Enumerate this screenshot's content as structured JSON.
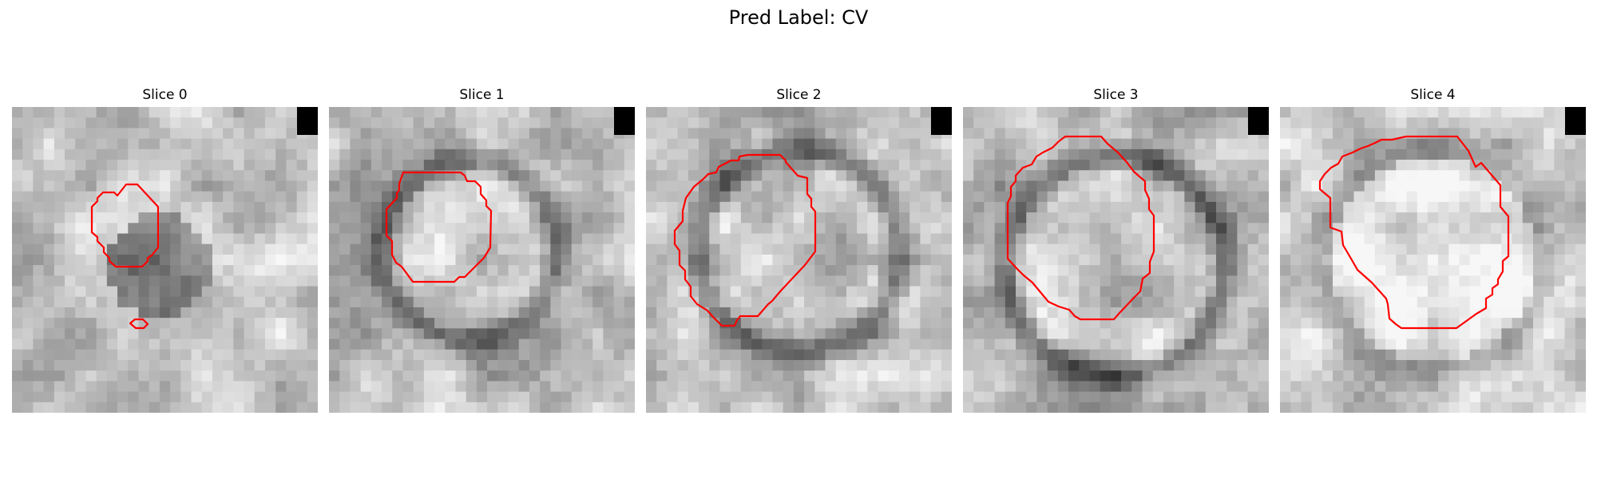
{
  "figure": {
    "title": "Pred Label: CV"
  },
  "panels": [
    {
      "title": "Slice 0",
      "seed": 11,
      "contour_color": "#ff0000"
    },
    {
      "title": "Slice 1",
      "seed": 23,
      "contour_color": "#ff0000"
    },
    {
      "title": "Slice 2",
      "seed": 37,
      "contour_color": "#ff0000"
    },
    {
      "title": "Slice 3",
      "seed": 41,
      "contour_color": "#ff0000"
    },
    {
      "title": "Slice 4",
      "seed": 59,
      "contour_color": "#ff0000"
    }
  ],
  "colors": {
    "contour": "#ff0000",
    "marker": "#000000",
    "background": "#ffffff"
  }
}
